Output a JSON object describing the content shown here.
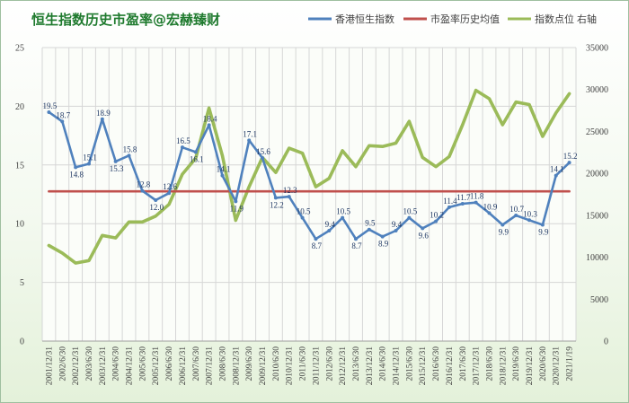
{
  "chart_data": {
    "type": "line",
    "title": "恒生指数历史市盈率@宏赫臻财",
    "legend_position": "top-right",
    "categories": [
      "2001/12/31",
      "2002/6/30",
      "2002/12/31",
      "2003/6/30",
      "2003/12/31",
      "2004/6/30",
      "2004/12/31",
      "2005/6/30",
      "2005/12/31",
      "2006/6/30",
      "2006/12/31",
      "2007/6/30",
      "2007/12/31",
      "2008/6/30",
      "2008/12/31",
      "2009/6/30",
      "2009/12/31",
      "2010/6/30",
      "2010/12/31",
      "2011/6/30",
      "2011/12/31",
      "2012/6/30",
      "2012/12/31",
      "2013/6/30",
      "2013/12/31",
      "2014/6/30",
      "2014/12/31",
      "2015/6/30",
      "2015/12/31",
      "2016/6/30",
      "2016/12/31",
      "2017/6/30",
      "2017/12/31",
      "2018/6/30",
      "2018/12/31",
      "2019/6/30",
      "2019/12/31",
      "2020/6/30",
      "2020/12/31",
      "2021/1/19"
    ],
    "y_left": {
      "min": 0,
      "max": 25,
      "step": 5,
      "ticks": [
        "0",
        "5",
        "10",
        "15",
        "20",
        "25"
      ]
    },
    "y_right": {
      "min": 0,
      "max": 35000,
      "step": 5000,
      "ticks": [
        "0",
        "5000",
        "10000",
        "15000",
        "20000",
        "25000",
        "30000",
        "35000"
      ]
    },
    "grid": true,
    "series": [
      {
        "name": "香港恒生指数",
        "axis": "left",
        "color": "#4f81bd",
        "values": [
          19.5,
          18.7,
          14.8,
          15.1,
          18.9,
          15.3,
          15.8,
          12.8,
          12.0,
          12.6,
          16.5,
          16.1,
          18.4,
          14.1,
          11.9,
          17.1,
          15.6,
          12.2,
          12.3,
          10.5,
          8.7,
          9.4,
          10.5,
          8.7,
          9.5,
          8.9,
          9.4,
          10.5,
          9.6,
          10.2,
          11.4,
          11.7,
          11.8,
          10.9,
          9.9,
          10.7,
          10.3,
          9.9,
          14.1,
          15.2
        ],
        "labels": [
          "19.5",
          "18.7",
          "14.8",
          "15.1",
          "18.9",
          "15.3",
          "15.8",
          "12.8",
          "12.0",
          "12.6",
          "16.5",
          "16.1",
          "18.4",
          "14.1",
          "11.9",
          "17.1",
          "15.6",
          "12.2",
          "12.3",
          "10.5",
          "8.7",
          "9.4",
          "10.5",
          "8.7",
          "9.5",
          "8.9",
          "9.4",
          "10.5",
          "9.6",
          "10.2",
          "11.4",
          "11.7",
          "11.8",
          "10.9",
          "9.9",
          "10.7",
          "10.3",
          "9.9",
          "14.1",
          "15.2"
        ]
      },
      {
        "name": "市盈率历史均值",
        "axis": "left",
        "color": "#c0504d",
        "values": [
          12.75,
          12.75,
          12.75,
          12.75,
          12.75,
          12.75,
          12.75,
          12.75,
          12.75,
          12.75,
          12.75,
          12.75,
          12.75,
          12.75,
          12.75,
          12.75,
          12.75,
          12.75,
          12.75,
          12.75,
          12.75,
          12.75,
          12.75,
          12.75,
          12.75,
          12.75,
          12.75,
          12.75,
          12.75,
          12.75,
          12.75,
          12.75,
          12.75,
          12.75,
          12.75,
          12.75,
          12.75,
          12.75,
          12.75,
          12.75
        ]
      },
      {
        "name": "指数点位 右轴",
        "axis": "right",
        "color": "#9bbb59",
        "values": [
          11400,
          10500,
          9300,
          9600,
          12600,
          12300,
          14200,
          14200,
          14900,
          16300,
          19900,
          21800,
          27800,
          22100,
          14400,
          18400,
          21900,
          20100,
          23000,
          22400,
          18400,
          19400,
          22700,
          20800,
          23300,
          23200,
          23600,
          26200,
          21900,
          20800,
          22000,
          25800,
          29900,
          28900,
          25800,
          28500,
          28200,
          24400,
          27200,
          29500
        ]
      }
    ]
  }
}
